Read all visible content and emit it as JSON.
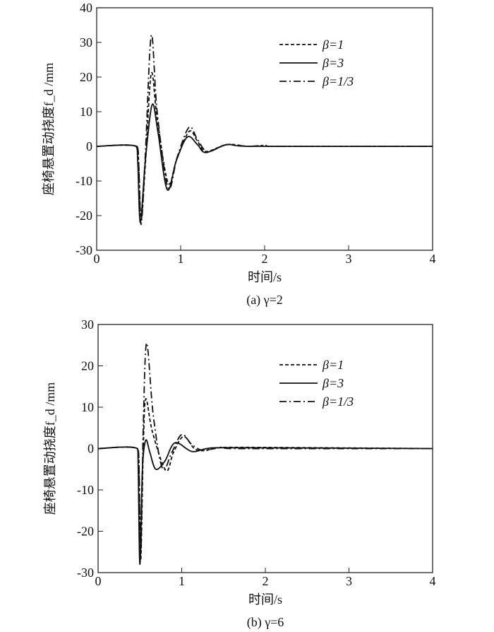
{
  "chart_data": [
    {
      "type": "line",
      "caption": "(a) γ=2",
      "xlabel": "时间/s",
      "ylabel": "座椅悬置动挠度f_d /mm",
      "xlim": [
        0,
        4
      ],
      "ylim": [
        -30,
        40
      ],
      "xticks": [
        0,
        1,
        2,
        3,
        4
      ],
      "yticks": [
        -30,
        -20,
        -10,
        0,
        10,
        20,
        30,
        40
      ],
      "grid": false,
      "legend_position": "top-right",
      "series": [
        {
          "name": "β=1",
          "style": "dashed",
          "x": [
            0,
            0.48,
            0.5,
            0.53,
            0.58,
            0.65,
            0.72,
            0.85,
            0.95,
            1.1,
            1.2,
            1.3,
            1.55,
            1.8,
            2.0,
            2.05,
            4
          ],
          "y": [
            0,
            0,
            -5,
            -21,
            -5,
            21,
            8,
            -10.5,
            -4,
            4.3,
            1.5,
            -1.5,
            0.5,
            0,
            0.2,
            0,
            0
          ]
        },
        {
          "name": "β=3",
          "style": "solid",
          "x": [
            0,
            0.47,
            0.49,
            0.52,
            0.58,
            0.66,
            0.73,
            0.84,
            0.95,
            1.08,
            1.2,
            1.3,
            1.55,
            1.8,
            4
          ],
          "y": [
            0,
            0,
            -5,
            -22,
            -4,
            12,
            4,
            -12.5,
            -4,
            2.7,
            0.5,
            -1.8,
            0.5,
            0,
            0
          ]
        },
        {
          "name": "β=1/3",
          "style": "dashdot",
          "x": [
            0,
            0.48,
            0.5,
            0.53,
            0.58,
            0.65,
            0.72,
            0.85,
            0.96,
            1.1,
            1.2,
            1.32,
            1.55,
            1.8,
            2.0,
            2.05,
            4
          ],
          "y": [
            0,
            0,
            -5,
            -22.5,
            -2,
            32,
            10,
            -12,
            -3,
            5.5,
            2,
            -1.5,
            0.5,
            0,
            0.3,
            0,
            0
          ]
        }
      ]
    },
    {
      "type": "line",
      "caption": "(b) γ=6",
      "xlabel": "时间/s",
      "ylabel": "座椅悬置动挠度f_d /mm",
      "xlim": [
        0,
        4
      ],
      "ylim": [
        -30,
        30
      ],
      "xticks": [
        0,
        1,
        2,
        3,
        4
      ],
      "yticks": [
        -30,
        -20,
        -10,
        0,
        10,
        20,
        30
      ],
      "grid": false,
      "legend_position": "top-right",
      "series": [
        {
          "name": "β=1",
          "style": "dashed",
          "x": [
            0,
            0.47,
            0.49,
            0.51,
            0.54,
            0.57,
            0.65,
            0.81,
            0.9,
            1.02,
            1.15,
            1.25,
            1.4,
            1.6,
            4
          ],
          "y": [
            0,
            0,
            -5,
            -27,
            0,
            12,
            4,
            -5.3,
            -1,
            2.9,
            0,
            -0.5,
            0,
            0.3,
            0
          ]
        },
        {
          "name": "β=3",
          "style": "solid",
          "x": [
            0,
            0.47,
            0.48,
            0.5,
            0.53,
            0.57,
            0.62,
            0.69,
            0.8,
            0.92,
            1.12,
            1.3,
            1.5,
            4
          ],
          "y": [
            0,
            0,
            -5,
            -28,
            -5,
            2,
            -1,
            -5,
            -3,
            1.4,
            -0.7,
            0,
            0.2,
            0
          ]
        },
        {
          "name": "β=1/3",
          "style": "dashdot",
          "x": [
            0,
            0.47,
            0.49,
            0.51,
            0.54,
            0.58,
            0.66,
            0.77,
            0.88,
            1.0,
            1.12,
            1.26,
            1.45,
            1.6,
            4
          ],
          "y": [
            0,
            0,
            -5,
            -26,
            5,
            25.5,
            8,
            -4.8,
            -1,
            3.4,
            1,
            -0.5,
            0.3,
            0,
            0
          ]
        }
      ]
    }
  ]
}
